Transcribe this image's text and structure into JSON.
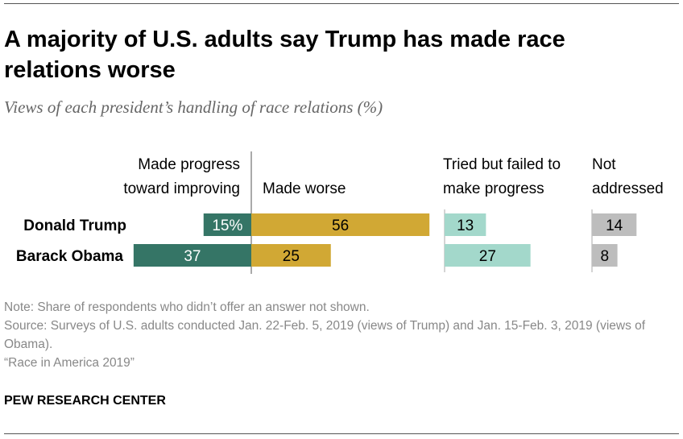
{
  "title": "A majority of U.S. adults say Trump has made race relations worse",
  "subtitle": "Views of each president’s handling of race relations (%)",
  "chart_data": {
    "type": "bar",
    "categories": [
      "Donald Trump",
      "Barack Obama"
    ],
    "series": [
      {
        "name": "Made progress toward improving",
        "label_lines": [
          "Made progress",
          "toward improving"
        ],
        "values": [
          15,
          37
        ],
        "labels": [
          "15%",
          "37"
        ],
        "color": "#357566",
        "text_color": "#ffffff"
      },
      {
        "name": "Made worse",
        "label_lines": [
          "Made worse"
        ],
        "values": [
          56,
          25
        ],
        "labels": [
          "56",
          "25"
        ],
        "color": "#d1a834",
        "text_color": "#000000"
      },
      {
        "name": "Tried but failed to make progress",
        "label_lines": [
          "Tried but failed to",
          "make progress"
        ],
        "values": [
          13,
          27
        ],
        "labels": [
          "13",
          "27"
        ],
        "color": "#a3d8cb",
        "text_color": "#000000"
      },
      {
        "name": "Not addressed",
        "label_lines": [
          "Not",
          "addressed"
        ],
        "values": [
          14,
          8
        ],
        "labels": [
          "14",
          "8"
        ],
        "color": "#bdbdbd",
        "text_color": "#000000"
      }
    ]
  },
  "footer": {
    "note": "Note: Share of respondents who didn’t offer an answer not shown.",
    "source": "Source: Surveys of U.S. adults conducted Jan. 22-Feb. 5, 2019 (views of Trump) and Jan. 15-Feb. 3, 2019 (views of Obama).",
    "report": "“Race in America 2019”",
    "brand": "PEW RESEARCH CENTER"
  }
}
